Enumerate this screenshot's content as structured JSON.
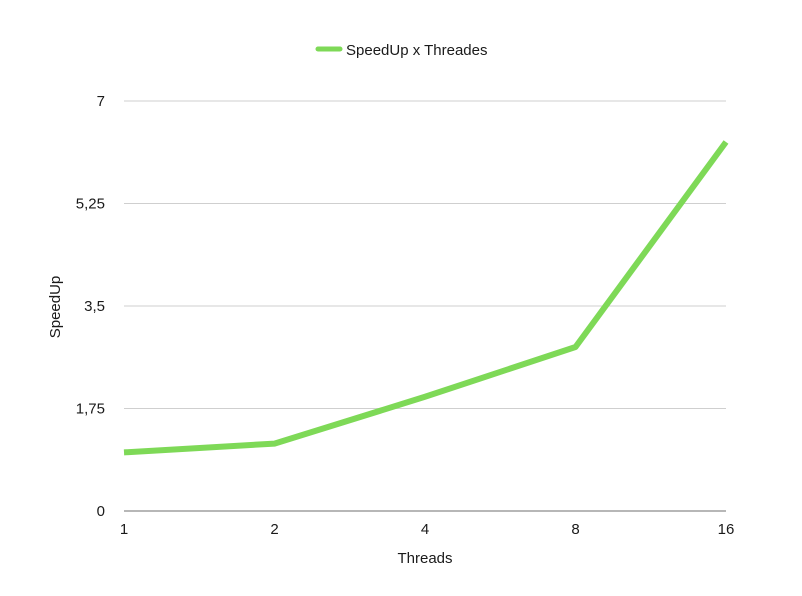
{
  "chart_data": {
    "type": "line",
    "title": "",
    "xlabel": "Threads",
    "ylabel": "SpeedUp",
    "x_scale": "log2",
    "categories": [
      "1",
      "2",
      "4",
      "8",
      "16"
    ],
    "x": [
      1,
      2,
      4,
      8,
      16
    ],
    "y_ticks": [
      "0",
      "1,75",
      "3,5",
      "5,25",
      "7"
    ],
    "y_tick_values": [
      0,
      1.75,
      3.5,
      5.25,
      7
    ],
    "ylim": [
      0,
      7
    ],
    "grid": true,
    "legend_position": "top-center",
    "series": [
      {
        "name": "SpeedUp x Threades",
        "color": "#7ed957",
        "values": [
          1.0,
          1.15,
          1.95,
          2.8,
          6.3
        ]
      }
    ]
  }
}
